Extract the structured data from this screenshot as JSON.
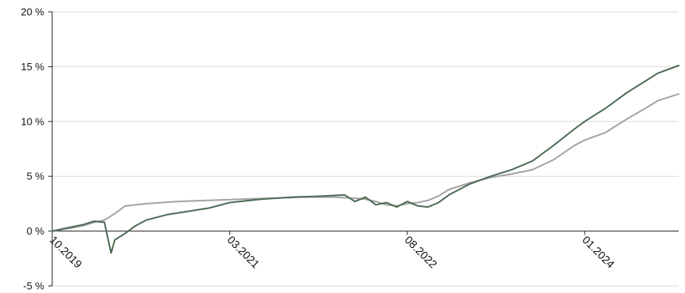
{
  "chart_data": {
    "type": "line",
    "title": "",
    "xlabel": "",
    "ylabel": "",
    "x_range": [
      "2019-10",
      "2024-10"
    ],
    "ylim": [
      -5,
      20
    ],
    "y_unit": "%",
    "grid": true,
    "legend": "none",
    "y_ticks": [
      {
        "value": -5,
        "label": "-5 %"
      },
      {
        "value": 0,
        "label": "0 %"
      },
      {
        "value": 5,
        "label": "5 %"
      },
      {
        "value": 10,
        "label": "10 %"
      },
      {
        "value": 15,
        "label": "15 %"
      },
      {
        "value": 20,
        "label": "20 %"
      }
    ],
    "x_ticks": [
      {
        "value": "2019-10",
        "label": "10.2019"
      },
      {
        "value": "2021-03",
        "label": "03.2021"
      },
      {
        "value": "2022-08",
        "label": "08.2022"
      },
      {
        "value": "2024-01",
        "label": "01.2024"
      }
    ],
    "series": [
      {
        "color": "#4d6b55",
        "points": [
          [
            "2019-10",
            0.0
          ],
          [
            "2019-12",
            0.4
          ],
          [
            "2020-01",
            0.6
          ],
          [
            "2020-02",
            0.9
          ],
          [
            "2020-03",
            0.8
          ],
          [
            "2020-03-20",
            -2.0
          ],
          [
            "2020-04",
            -0.8
          ],
          [
            "2020-05",
            -0.2
          ],
          [
            "2020-06",
            0.5
          ],
          [
            "2020-07",
            1.0
          ],
          [
            "2020-09",
            1.5
          ],
          [
            "2020-11",
            1.8
          ],
          [
            "2021-01",
            2.1
          ],
          [
            "2021-03",
            2.6
          ],
          [
            "2021-06",
            2.9
          ],
          [
            "2021-09",
            3.1
          ],
          [
            "2021-12",
            3.2
          ],
          [
            "2022-02",
            3.3
          ],
          [
            "2022-03",
            2.7
          ],
          [
            "2022-04",
            3.1
          ],
          [
            "2022-05",
            2.4
          ],
          [
            "2022-06",
            2.6
          ],
          [
            "2022-07",
            2.2
          ],
          [
            "2022-08",
            2.7
          ],
          [
            "2022-09",
            2.3
          ],
          [
            "2022-10",
            2.2
          ],
          [
            "2022-11",
            2.6
          ],
          [
            "2022-12",
            3.3
          ],
          [
            "2023-02",
            4.3
          ],
          [
            "2023-04",
            5.0
          ],
          [
            "2023-06",
            5.6
          ],
          [
            "2023-08",
            6.4
          ],
          [
            "2023-10",
            7.8
          ],
          [
            "2023-12",
            9.3
          ],
          [
            "2024-01",
            10.0
          ],
          [
            "2024-03",
            11.2
          ],
          [
            "2024-05",
            12.6
          ],
          [
            "2024-07",
            13.8
          ],
          [
            "2024-08",
            14.4
          ],
          [
            "2024-10",
            15.1
          ]
        ]
      },
      {
        "color": "#a3a3a3",
        "points": [
          [
            "2019-10",
            0.0
          ],
          [
            "2019-12",
            0.3
          ],
          [
            "2020-01",
            0.5
          ],
          [
            "2020-02",
            0.8
          ],
          [
            "2020-03",
            1.0
          ],
          [
            "2020-04",
            1.6
          ],
          [
            "2020-05",
            2.3
          ],
          [
            "2020-07",
            2.5
          ],
          [
            "2020-10",
            2.7
          ],
          [
            "2021-01",
            2.8
          ],
          [
            "2021-04",
            2.9
          ],
          [
            "2021-07",
            3.0
          ],
          [
            "2021-10",
            3.1
          ],
          [
            "2022-01",
            3.1
          ],
          [
            "2022-03",
            3.0
          ],
          [
            "2022-04",
            2.9
          ],
          [
            "2022-05",
            2.7
          ],
          [
            "2022-06",
            2.4
          ],
          [
            "2022-07",
            2.3
          ],
          [
            "2022-08",
            2.5
          ],
          [
            "2022-09",
            2.6
          ],
          [
            "2022-10",
            2.8
          ],
          [
            "2022-11",
            3.2
          ],
          [
            "2022-12",
            3.8
          ],
          [
            "2023-02",
            4.4
          ],
          [
            "2023-04",
            4.9
          ],
          [
            "2023-06",
            5.2
          ],
          [
            "2023-08",
            5.6
          ],
          [
            "2023-10",
            6.5
          ],
          [
            "2023-12",
            7.8
          ],
          [
            "2024-01",
            8.3
          ],
          [
            "2024-03",
            9.0
          ],
          [
            "2024-05",
            10.2
          ],
          [
            "2024-07",
            11.3
          ],
          [
            "2024-08",
            11.9
          ],
          [
            "2024-10",
            12.5
          ]
        ]
      }
    ]
  }
}
